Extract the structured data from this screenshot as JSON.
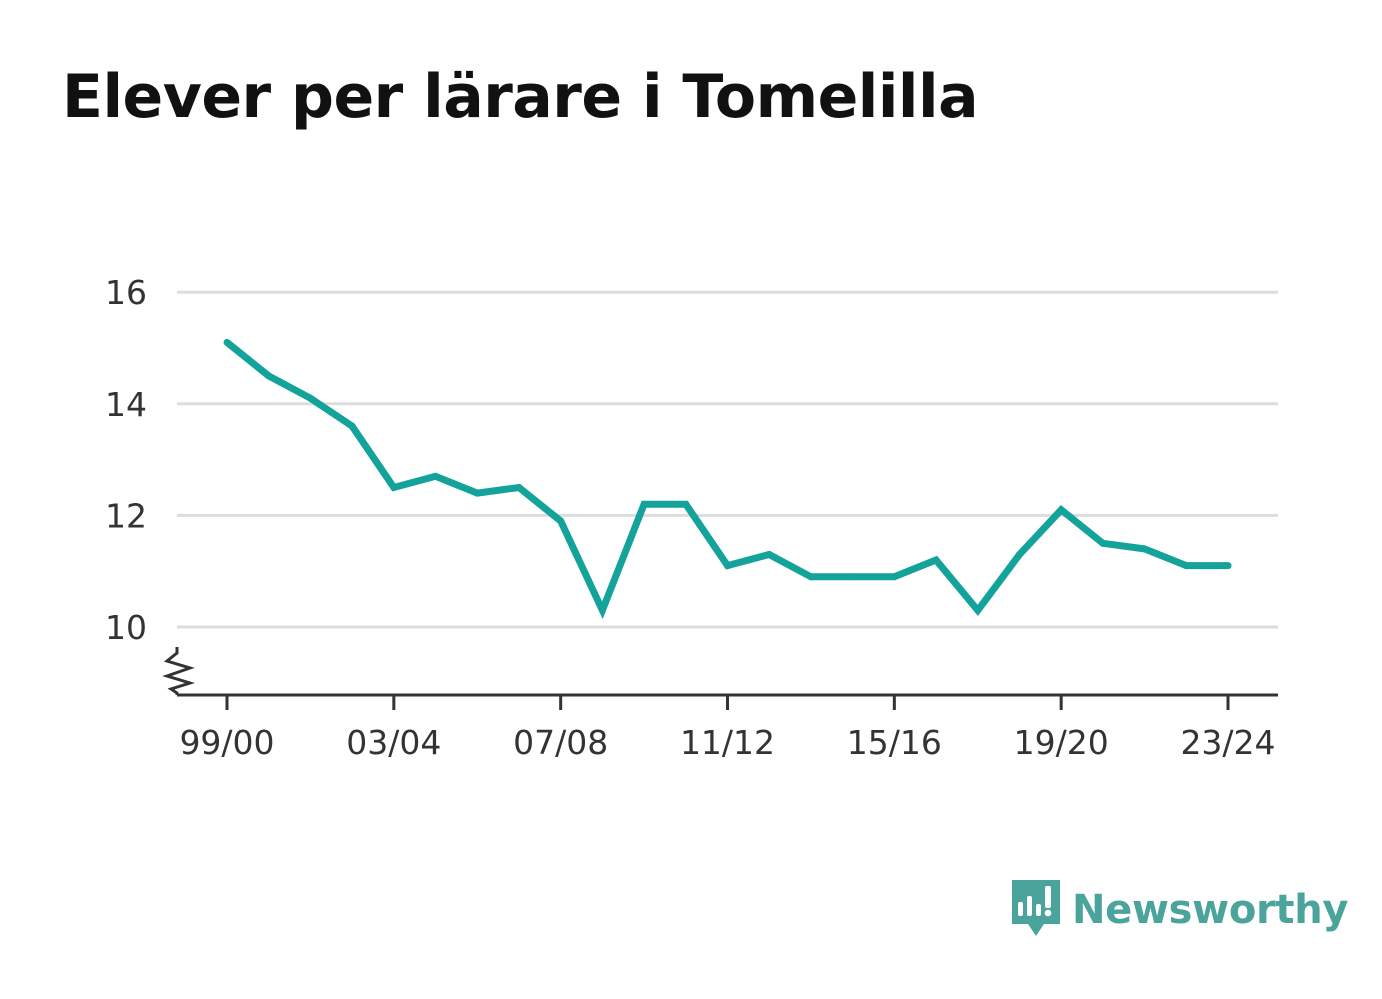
{
  "title": "Elever per lärare i Tomelilla",
  "brand": {
    "name": "Newsworthy",
    "color": "#4aa49c",
    "icon": "newsworthy-logo-icon"
  },
  "colors": {
    "line": "#13a39a",
    "grid": "#dddddd",
    "axis": "#333333",
    "text": "#333333"
  },
  "chart_data": {
    "type": "line",
    "title": "Elever per lärare i Tomelilla",
    "xlabel": "",
    "ylabel": "",
    "ylim": [
      8.8,
      16
    ],
    "y_ticks": [
      10,
      12,
      14,
      16
    ],
    "y_axis_break": true,
    "grid": true,
    "x_ticks": [
      "99/00",
      "03/04",
      "07/08",
      "11/12",
      "15/16",
      "19/20",
      "23/24"
    ],
    "x": [
      "99/00",
      "00/01",
      "01/02",
      "02/03",
      "03/04",
      "04/05",
      "05/06",
      "06/07",
      "07/08",
      "08/09",
      "09/10",
      "10/11",
      "11/12",
      "12/13",
      "13/14",
      "14/15",
      "15/16",
      "16/17",
      "17/18",
      "18/19",
      "19/20",
      "20/21",
      "21/22",
      "22/23",
      "23/24"
    ],
    "series": [
      {
        "values": [
          15.1,
          14.5,
          14.1,
          13.6,
          12.5,
          12.7,
          12.4,
          12.5,
          11.9,
          10.3,
          12.2,
          12.2,
          11.1,
          11.3,
          10.9,
          10.9,
          10.9,
          11.2,
          10.3,
          11.3,
          12.1,
          11.5,
          11.4,
          11.1,
          11.1
        ]
      }
    ]
  }
}
